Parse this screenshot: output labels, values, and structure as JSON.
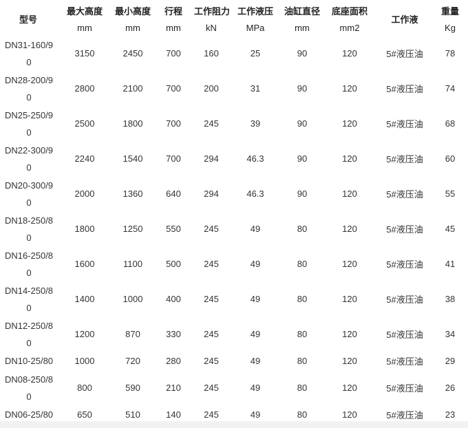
{
  "headers": [
    "型号",
    "最大高度",
    "最小高度",
    "行程",
    "工作阻力",
    "工作液压",
    "油缸直径",
    "底座面积",
    "工作液",
    "重量"
  ],
  "units": [
    "mm",
    "mm",
    "mm",
    "kN",
    "MPa",
    "mm",
    "mm2",
    "Kg"
  ],
  "rows": [
    [
      "DN31-160/90",
      "3150",
      "2450",
      "700",
      "160",
      "25",
      "90",
      "120",
      "5#液压油",
      "78"
    ],
    [
      "DN28-200/90",
      "2800",
      "2100",
      "700",
      "200",
      "31",
      "90",
      "120",
      "5#液压油",
      "74"
    ],
    [
      "DN25-250/90",
      "2500",
      "1800",
      "700",
      "245",
      "39",
      "90",
      "120",
      "5#液压油",
      "68"
    ],
    [
      "DN22-300/90",
      "2240",
      "1540",
      "700",
      "294",
      "46.3",
      "90",
      "120",
      "5#液压油",
      "60"
    ],
    [
      "DN20-300/90",
      "2000",
      "1360",
      "640",
      "294",
      "46.3",
      "90",
      "120",
      "5#液压油",
      "55"
    ],
    [
      "DN18-250/80",
      "1800",
      "1250",
      "550",
      "245",
      "49",
      "80",
      "120",
      "5#液压油",
      "45"
    ],
    [
      "DN16-250/80",
      "1600",
      "1100",
      "500",
      "245",
      "49",
      "80",
      "120",
      "5#液压油",
      "41"
    ],
    [
      "DN14-250/80",
      "1400",
      "1000",
      "400",
      "245",
      "49",
      "80",
      "120",
      "5#液压油",
      "38"
    ],
    [
      "DN12-250/80",
      "1200",
      "870",
      "330",
      "245",
      "49",
      "80",
      "120",
      "5#液压油",
      "34"
    ],
    [
      "DN10-25/80",
      "1000",
      "720",
      "280",
      "245",
      "49",
      "80",
      "120",
      "5#液压油",
      "29"
    ],
    [
      "DN08-250/80",
      "800",
      "590",
      "210",
      "245",
      "49",
      "80",
      "120",
      "5#液压油",
      "26"
    ],
    [
      "DN06-25/80",
      "650",
      "510",
      "140",
      "245",
      "49",
      "80",
      "120",
      "5#液压油",
      "23"
    ]
  ]
}
